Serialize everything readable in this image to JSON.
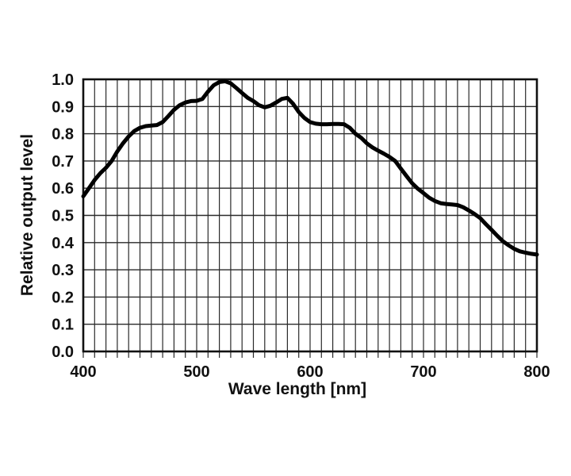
{
  "chart": {
    "ylabel": "Relative output level",
    "xlabel": "Wave length [nm]"
  },
  "chart_data": {
    "type": "line",
    "title": "",
    "xlabel": "Wave length [nm]",
    "ylabel": "Relative output level",
    "xlim": [
      400,
      800
    ],
    "ylim": [
      0.0,
      1.0
    ],
    "grid": true,
    "x_minor_grid_step_nm": 10,
    "y_grid_step": 0.1,
    "x_tick_labels": [
      "400",
      "500",
      "600",
      "700",
      "800"
    ],
    "x_tick_values": [
      400,
      500,
      600,
      700,
      800
    ],
    "y_tick_labels": [
      "0.0",
      "0.1",
      "0.2",
      "0.3",
      "0.4",
      "0.5",
      "0.6",
      "0.7",
      "0.8",
      "0.9",
      "1.0"
    ],
    "y_tick_values": [
      0.0,
      0.1,
      0.2,
      0.3,
      0.4,
      0.5,
      0.6,
      0.7,
      0.8,
      0.9,
      1.0
    ],
    "line_color": "#000000",
    "grid_color": "#2a2a2a",
    "series": [
      {
        "name": "relative-output-level",
        "x": [
          400,
          405,
          410,
          415,
          420,
          425,
          430,
          435,
          440,
          445,
          450,
          455,
          460,
          465,
          470,
          475,
          480,
          485,
          490,
          495,
          500,
          505,
          510,
          515,
          520,
          525,
          530,
          535,
          540,
          545,
          550,
          555,
          560,
          565,
          570,
          575,
          580,
          585,
          590,
          595,
          600,
          605,
          610,
          615,
          620,
          625,
          630,
          635,
          640,
          645,
          650,
          655,
          660,
          665,
          670,
          675,
          680,
          685,
          690,
          695,
          700,
          705,
          710,
          715,
          720,
          725,
          730,
          735,
          740,
          745,
          750,
          755,
          760,
          765,
          770,
          775,
          780,
          785,
          790,
          795,
          800
        ],
        "y": [
          0.57,
          0.6,
          0.63,
          0.655,
          0.675,
          0.7,
          0.735,
          0.765,
          0.79,
          0.81,
          0.822,
          0.828,
          0.83,
          0.832,
          0.843,
          0.865,
          0.888,
          0.905,
          0.915,
          0.92,
          0.921,
          0.928,
          0.955,
          0.978,
          0.99,
          0.993,
          0.985,
          0.968,
          0.95,
          0.932,
          0.92,
          0.905,
          0.897,
          0.903,
          0.915,
          0.928,
          0.932,
          0.91,
          0.88,
          0.858,
          0.843,
          0.837,
          0.835,
          0.835,
          0.836,
          0.836,
          0.835,
          0.822,
          0.8,
          0.785,
          0.765,
          0.75,
          0.738,
          0.727,
          0.715,
          0.7,
          0.672,
          0.645,
          0.618,
          0.598,
          0.582,
          0.565,
          0.553,
          0.545,
          0.542,
          0.54,
          0.538,
          0.53,
          0.518,
          0.505,
          0.49,
          0.468,
          0.447,
          0.425,
          0.405,
          0.39,
          0.377,
          0.368,
          0.363,
          0.359,
          0.356
        ]
      }
    ]
  }
}
